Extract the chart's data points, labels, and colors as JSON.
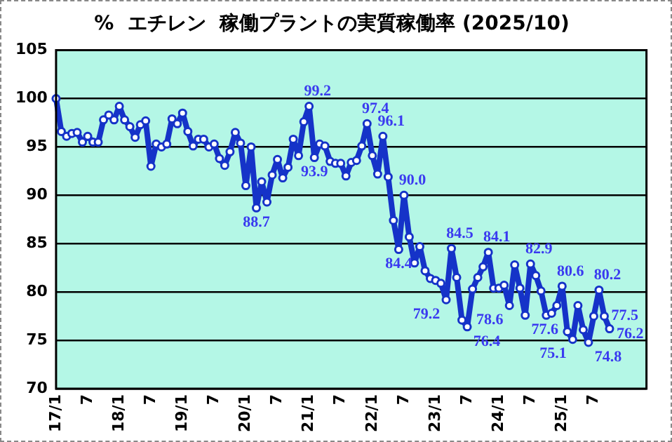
{
  "chart_data": {
    "type": "line",
    "title": "%  エチレン  稼働プラントの実質稼働率 (2025/10)",
    "categories": [
      "17/1",
      null,
      null,
      null,
      null,
      null,
      "7",
      null,
      null,
      null,
      null,
      null,
      "18/1",
      null,
      null,
      null,
      null,
      null,
      "7",
      null,
      null,
      null,
      null,
      null,
      "19/1",
      null,
      null,
      null,
      null,
      null,
      "7",
      null,
      null,
      null,
      null,
      null,
      "20/1",
      null,
      null,
      null,
      null,
      null,
      "7",
      null,
      null,
      null,
      null,
      null,
      "21/1",
      null,
      null,
      null,
      null,
      null,
      "7",
      null,
      null,
      null,
      null,
      null,
      "22/1",
      null,
      null,
      null,
      null,
      null,
      "7",
      null,
      null,
      null,
      null,
      null,
      "23/1",
      null,
      null,
      null,
      null,
      null,
      "7",
      null,
      null,
      null,
      null,
      null,
      "24/1",
      null,
      null,
      null,
      null,
      null,
      "7",
      null,
      null,
      null,
      null,
      null,
      "25/1",
      null,
      null,
      null,
      null,
      null,
      "7",
      null,
      null,
      null,
      null,
      null,
      null,
      null,
      null,
      null,
      null
    ],
    "series": [
      {
        "color": "#1533c8",
        "values": [
          100.0,
          96.6,
          96.1,
          96.4,
          96.5,
          95.5,
          96.1,
          95.5,
          95.5,
          97.8,
          98.3,
          97.8,
          99.2,
          97.8,
          97.1,
          96.0,
          97.3,
          97.7,
          93.0,
          95.3,
          95.0,
          95.3,
          97.9,
          97.4,
          98.5,
          96.6,
          95.1,
          95.8,
          95.8,
          95.0,
          95.3,
          93.8,
          93.1,
          94.5,
          96.5,
          95.4,
          91.0,
          95.0,
          88.7,
          91.4,
          89.3,
          92.1,
          93.7,
          91.8,
          92.9,
          95.8,
          94.1,
          97.6,
          99.2,
          93.9,
          95.3,
          95.1,
          93.5,
          93.3,
          93.3,
          92.0,
          93.4,
          93.6,
          95.1,
          97.4,
          94.1,
          92.2,
          96.1,
          91.9,
          87.4,
          84.4,
          90.0,
          85.7,
          83.0,
          84.7,
          82.2,
          81.4,
          81.2,
          80.9,
          79.2,
          84.5,
          81.5,
          77.1,
          76.4,
          80.3,
          81.5,
          82.6,
          84.1,
          80.4,
          80.4,
          80.7,
          78.6,
          82.8,
          80.4,
          77.6,
          82.9,
          81.7,
          80.1,
          77.6,
          77.8,
          78.6,
          80.6,
          75.9,
          75.1,
          78.6,
          76.1,
          74.8,
          77.5,
          80.2,
          77.5,
          76.2,
          null,
          null,
          null,
          null,
          null,
          null,
          null
        ],
        "value_labels": [
          null,
          null,
          null,
          null,
          null,
          null,
          null,
          null,
          null,
          null,
          null,
          null,
          null,
          null,
          null,
          null,
          null,
          null,
          null,
          null,
          null,
          null,
          null,
          null,
          null,
          null,
          null,
          null,
          null,
          null,
          null,
          null,
          null,
          null,
          null,
          null,
          null,
          null,
          "88.7",
          null,
          null,
          null,
          null,
          null,
          null,
          null,
          null,
          null,
          "99.2",
          "93.9",
          null,
          null,
          null,
          null,
          null,
          null,
          null,
          null,
          null,
          "97.4",
          null,
          null,
          "96.1",
          null,
          null,
          "84.4",
          "90.0",
          null,
          null,
          null,
          null,
          null,
          null,
          null,
          "79.2",
          "84.5",
          null,
          null,
          "76.4",
          null,
          null,
          null,
          "84.1",
          null,
          null,
          null,
          "78.6",
          null,
          null,
          "77.6",
          "82.9",
          null,
          null,
          null,
          null,
          null,
          "80.6",
          null,
          "75.1",
          null,
          null,
          "74.8",
          null,
          "80.2",
          "77.5",
          "76.2",
          null,
          null,
          null,
          null,
          null,
          null,
          null
        ]
      }
    ],
    "ylim": [
      70,
      105
    ],
    "yticks": [
      70,
      75,
      80,
      85,
      90,
      95,
      100,
      105
    ],
    "grid": "y",
    "legend": false,
    "marker": "circle",
    "line_style": "solid"
  }
}
